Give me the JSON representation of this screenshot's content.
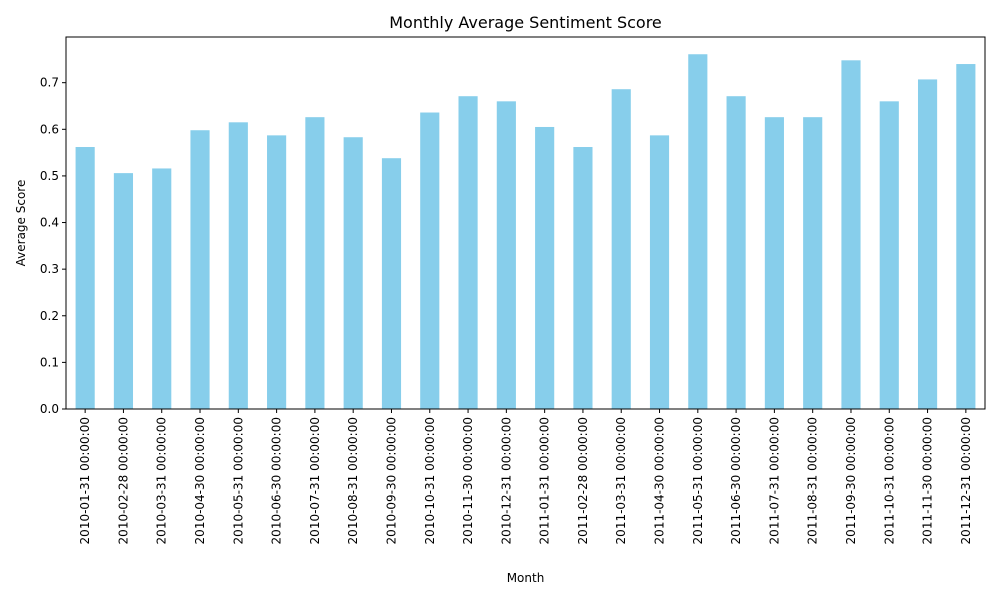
{
  "chart_data": {
    "type": "bar",
    "title": "Monthly Average Sentiment Score",
    "xlabel": "Month",
    "ylabel": "Average Score",
    "ylim": [
      0,
      0.798
    ],
    "yticks": [
      "0.0",
      "0.1",
      "0.2",
      "0.3",
      "0.4",
      "0.5",
      "0.6",
      "0.7"
    ],
    "bar_color": "#87ceeb",
    "grid": false,
    "categories": [
      "2010-01-31 00:00:00",
      "2010-02-28 00:00:00",
      "2010-03-31 00:00:00",
      "2010-04-30 00:00:00",
      "2010-05-31 00:00:00",
      "2010-06-30 00:00:00",
      "2010-07-31 00:00:00",
      "2010-08-31 00:00:00",
      "2010-09-30 00:00:00",
      "2010-10-31 00:00:00",
      "2010-11-30 00:00:00",
      "2010-12-31 00:00:00",
      "2011-01-31 00:00:00",
      "2011-02-28 00:00:00",
      "2011-03-31 00:00:00",
      "2011-04-30 00:00:00",
      "2011-05-31 00:00:00",
      "2011-06-30 00:00:00",
      "2011-07-31 00:00:00",
      "2011-08-31 00:00:00",
      "2011-09-30 00:00:00",
      "2011-10-31 00:00:00",
      "2011-11-30 00:00:00",
      "2011-12-31 00:00:00"
    ],
    "values": [
      0.562,
      0.506,
      0.516,
      0.598,
      0.615,
      0.587,
      0.626,
      0.583,
      0.538,
      0.636,
      0.671,
      0.66,
      0.605,
      0.562,
      0.686,
      0.587,
      0.761,
      0.671,
      0.626,
      0.626,
      0.748,
      0.66,
      0.707,
      0.74
    ]
  }
}
